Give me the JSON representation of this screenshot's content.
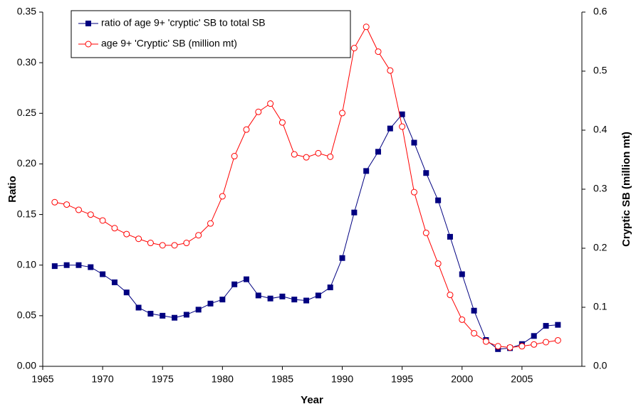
{
  "chart_data": {
    "type": "line",
    "x_label": "Year",
    "y_label": "Ratio",
    "y2_label": "Cryptic SB (million mt)",
    "x": [
      1966,
      1967,
      1968,
      1969,
      1970,
      1971,
      1972,
      1973,
      1974,
      1975,
      1976,
      1977,
      1978,
      1979,
      1980,
      1981,
      1982,
      1983,
      1984,
      1985,
      1986,
      1987,
      1988,
      1989,
      1990,
      1991,
      1992,
      1993,
      1994,
      1995,
      1996,
      1997,
      1998,
      1999,
      2000,
      2001,
      2002,
      2003,
      2004,
      2005,
      2006,
      2007,
      2008
    ],
    "series": [
      {
        "name": "ratio of age 9+ 'cryptic' SB to total SB",
        "color": "#000080",
        "marker": "square",
        "values": [
          0.099,
          0.1,
          0.1,
          0.098,
          0.091,
          0.083,
          0.073,
          0.058,
          0.052,
          0.05,
          0.048,
          0.051,
          0.056,
          0.062,
          0.066,
          0.081,
          0.086,
          0.07,
          0.067,
          0.069,
          0.066,
          0.065,
          0.07,
          0.078,
          0.107,
          0.152,
          0.193,
          0.212,
          0.235,
          0.249,
          0.221,
          0.191,
          0.164,
          0.128,
          0.091,
          0.055,
          0.026,
          0.017,
          0.018,
          0.022,
          0.03,
          0.04,
          0.041
        ]
      },
      {
        "name": "age 9+ 'Cryptic' SB (million mt)",
        "color": "#ff0000",
        "marker": "circle",
        "axis": "y2",
        "values": [
          0.278,
          0.274,
          0.265,
          0.257,
          0.247,
          0.234,
          0.224,
          0.216,
          0.209,
          0.205,
          0.205,
          0.209,
          0.222,
          0.242,
          0.288,
          0.356,
          0.401,
          0.431,
          0.445,
          0.413,
          0.359,
          0.354,
          0.361,
          0.355,
          0.429,
          0.539,
          0.575,
          0.533,
          0.501,
          0.406,
          0.295,
          0.226,
          0.174,
          0.121,
          0.079,
          0.056,
          0.042,
          0.034,
          0.032,
          0.034,
          0.037,
          0.041,
          0.044
        ]
      }
    ],
    "xlim": [
      1965,
      2010
    ],
    "xticks": [
      1965,
      1970,
      1975,
      1980,
      1985,
      1990,
      1995,
      2000,
      2005
    ],
    "ylim": [
      0,
      0.35
    ],
    "yticks": [
      {
        "value": 0,
        "label": "0.00"
      },
      0.05,
      {
        "value": 0.1,
        "label": "0.10"
      },
      0.15,
      {
        "value": 0.2,
        "label": "0.20"
      },
      0.25,
      {
        "value": 0.3,
        "label": "0.30"
      },
      0.35
    ],
    "y2lim": [
      0,
      0.6
    ],
    "y2ticks": [
      {
        "value": 0,
        "label": "0.0"
      },
      0.1,
      0.2,
      0.3,
      0.4,
      0.5,
      0.6
    ],
    "grid": false,
    "legend": "upper left"
  }
}
